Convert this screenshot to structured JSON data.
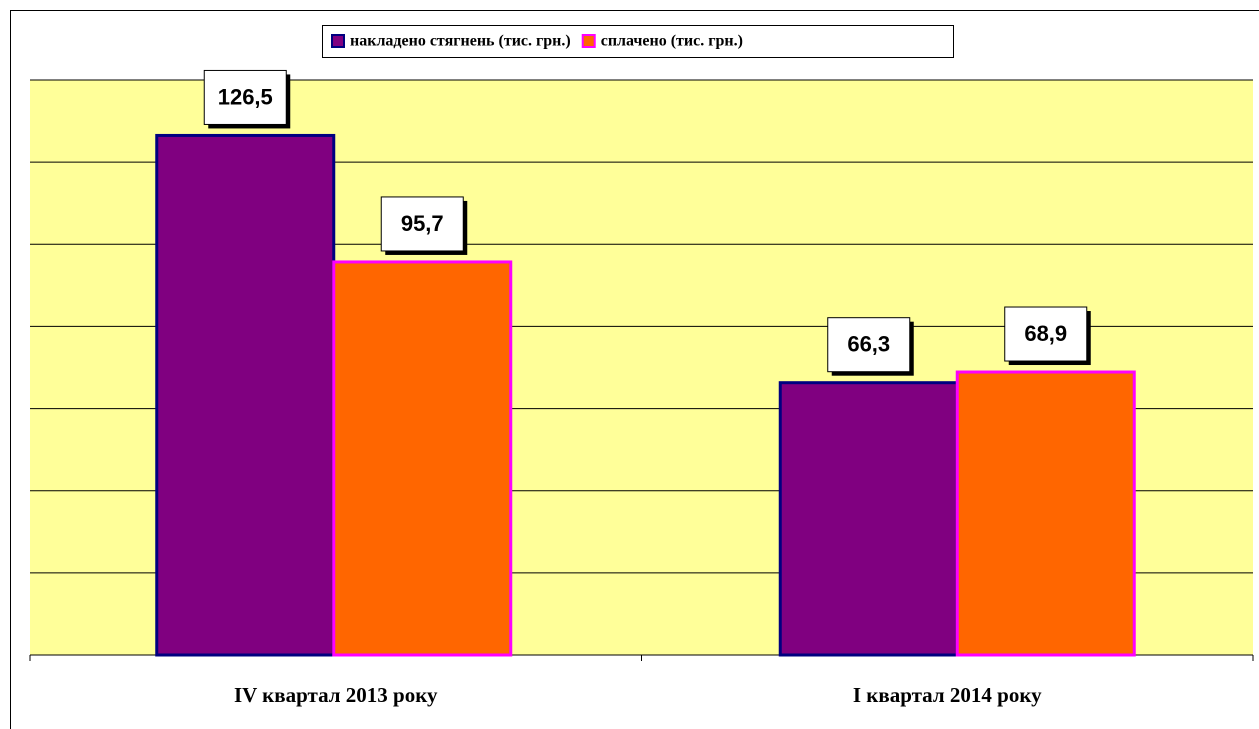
{
  "chart_data": {
    "type": "bar",
    "categories": [
      "IV квартал 2013 року",
      "I квартал 2014 року"
    ],
    "series": [
      {
        "name": "накладено стягнень (тис. грн.)",
        "color": "#800080",
        "edge": "#000080",
        "values": [
          126.5,
          66.3
        ],
        "value_labels": [
          "126,5",
          "66,3"
        ]
      },
      {
        "name": "сплачено (тис. грн.)",
        "color": "#ff6600",
        "edge": "#ff00ff",
        "values": [
          95.7,
          68.9
        ],
        "value_labels": [
          "95,7",
          "68,9"
        ]
      }
    ],
    "ylim": [
      0,
      140
    ],
    "yticks": [
      0,
      20,
      40,
      60,
      80,
      100,
      120,
      140
    ],
    "grid": true,
    "legend": "top",
    "plot_background": "#ffff99"
  }
}
